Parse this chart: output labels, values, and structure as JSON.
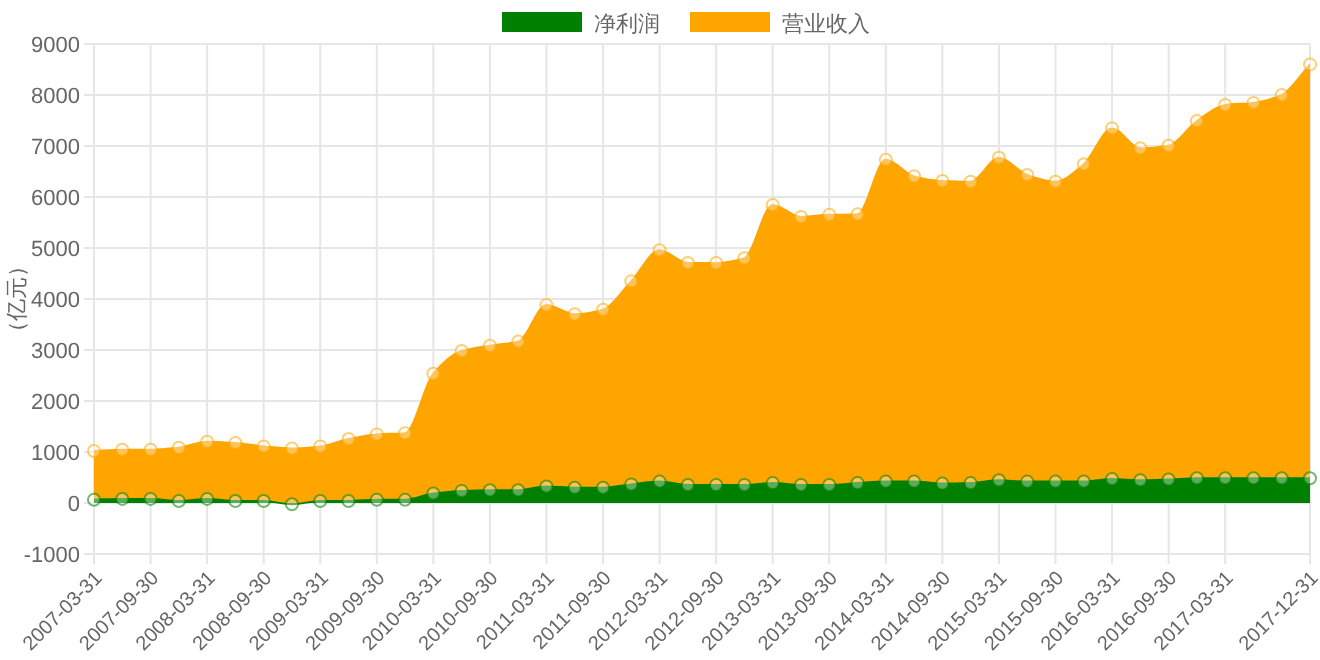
{
  "chart_data": {
    "type": "area",
    "ylabel": "（亿元）",
    "categories": [
      "2007-03-31",
      null,
      "2007-09-30",
      null,
      "2008-03-31",
      null,
      "2008-09-30",
      null,
      "2009-03-31",
      null,
      "2009-09-30",
      null,
      "2010-03-31",
      null,
      "2010-09-30",
      null,
      "2011-03-31",
      null,
      "2011-09-30",
      null,
      "2012-03-31",
      null,
      "2012-09-30",
      null,
      "2013-03-31",
      null,
      "2013-09-30",
      null,
      "2014-03-31",
      null,
      "2014-09-30",
      null,
      "2015-03-31",
      null,
      "2015-09-30",
      null,
      "2016-03-31",
      null,
      "2016-09-30",
      null,
      "2017-03-31",
      null,
      null,
      "2017-12-31"
    ],
    "series": [
      {
        "name": "净利润",
        "color": "#008000",
        "values": [
          65,
          80,
          80,
          40,
          80,
          40,
          40,
          -25,
          40,
          40,
          65,
          65,
          185,
          235,
          250,
          250,
          325,
          300,
          300,
          365,
          420,
          355,
          355,
          355,
          390,
          355,
          355,
          390,
          420,
          420,
          380,
          390,
          445,
          420,
          420,
          420,
          470,
          445,
          460,
          485,
          485,
          485,
          485,
          485
        ]
      },
      {
        "name": "营业收入",
        "color": "#ffa500",
        "values": [
          1020,
          1045,
          1045,
          1085,
          1200,
          1175,
          1110,
          1070,
          1110,
          1255,
          1345,
          1370,
          2535,
          2980,
          3085,
          3165,
          3880,
          3700,
          3790,
          4350,
          4955,
          4705,
          4705,
          4800,
          5845,
          5610,
          5650,
          5660,
          6730,
          6405,
          6315,
          6300,
          6770,
          6430,
          6300,
          6640,
          7345,
          6955,
          7005,
          7490,
          7805,
          7845,
          8000,
          8600
        ]
      }
    ],
    "ylim": [
      -1000,
      9000
    ],
    "yticks": [
      -1000,
      0,
      1000,
      2000,
      3000,
      4000,
      5000,
      6000,
      7000,
      8000,
      9000
    ],
    "grid": true,
    "legend": "top",
    "marker": "circle"
  }
}
